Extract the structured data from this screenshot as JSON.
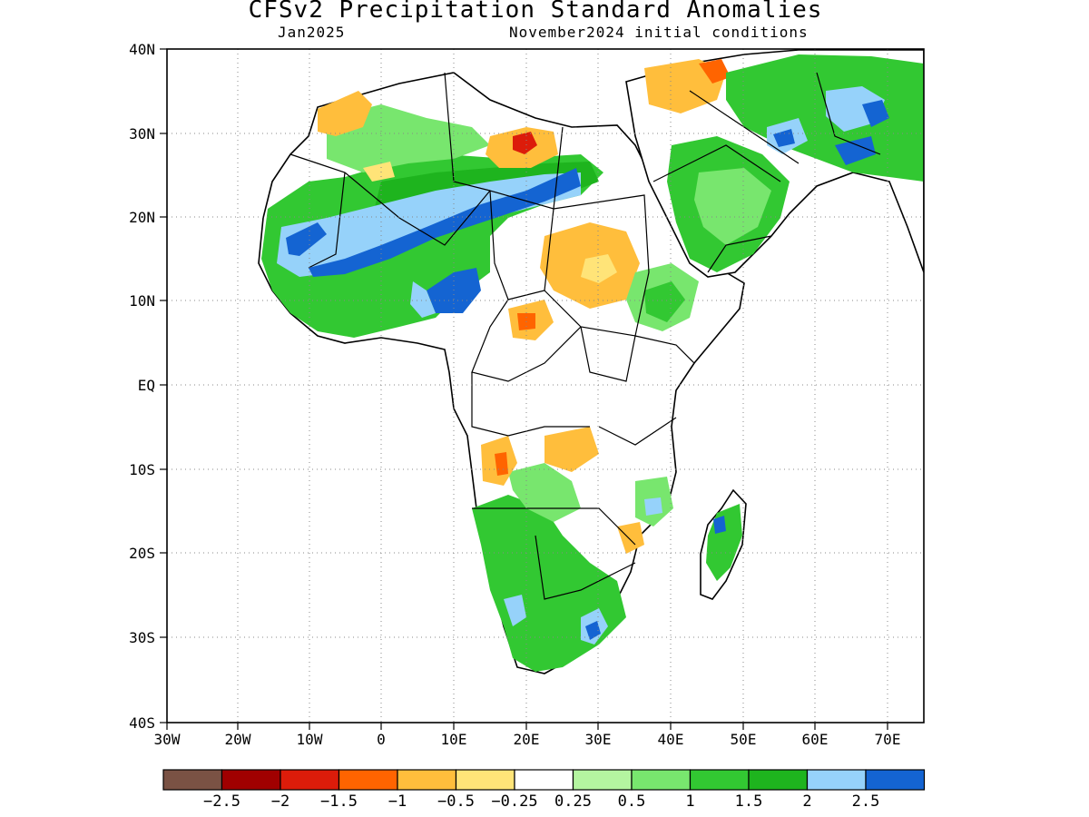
{
  "title": "CFSv2 Precipitation Standard Anomalies",
  "subtitle_left": "Jan2025",
  "subtitle_right": "November2024 initial conditions",
  "lat_labels": [
    "40N",
    "30N",
    "20N",
    "10N",
    "EQ",
    "10S",
    "20S",
    "30S",
    "40S"
  ],
  "lon_labels": [
    "30W",
    "20W",
    "10W",
    "0",
    "10E",
    "20E",
    "30E",
    "40E",
    "50E",
    "60E",
    "70E"
  ],
  "colorbar": {
    "colors": [
      "#7a5244",
      "#a00000",
      "#dc1c0a",
      "#ff6400",
      "#ffbe3c",
      "#ffe478",
      "#ffffff",
      "#b4f5a0",
      "#78e66e",
      "#32c832",
      "#1eb41e",
      "#96d2fa",
      "#1464d2"
    ],
    "labels": [
      "-2.5",
      "-2",
      "-1.5",
      "-1",
      "-0.5",
      "-0.25",
      "0.25",
      "0.5",
      "1",
      "1.5",
      "2",
      "2.5"
    ]
  },
  "colors": {
    "strong_wet": "#1464d2",
    "wet": "#96d2fa",
    "green_dark": "#1eb41e",
    "green": "#32c832",
    "green_light": "#78e66e",
    "green_pale": "#b4f5a0",
    "dry_pale": "#ffe478",
    "dry": "#ffbe3c",
    "dry_orange": "#ff6400",
    "dry_red": "#dc1c0a"
  }
}
